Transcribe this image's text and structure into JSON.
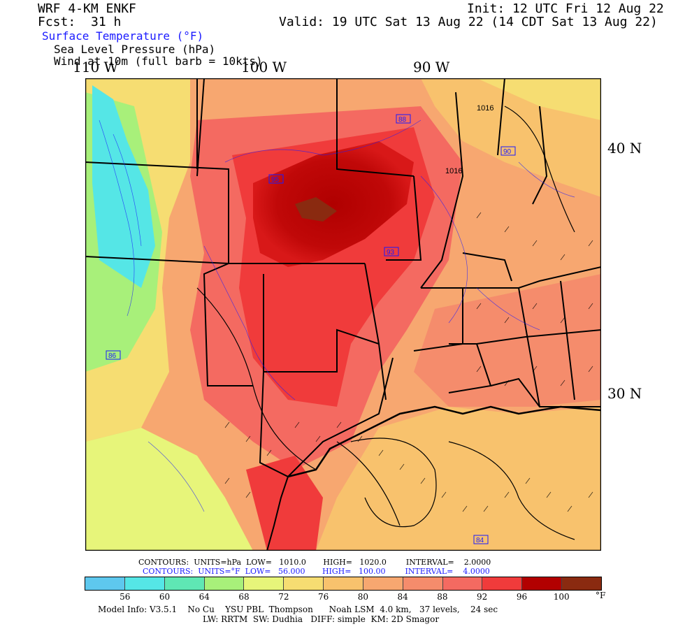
{
  "header": {
    "model": "WRF 4-KM ENKF",
    "fcst_label": "Fcst:",
    "fcst_value": "31 h",
    "init": "Init: 12 UTC Fri 12 Aug 22",
    "valid": "Valid: 19 UTC Sat 13 Aug 22 (14 CDT Sat 13 Aug 22)",
    "field1": "Surface Temperature (°F)",
    "field2": "Sea Level Pressure (hPa)",
    "field3": "Wind at 10m (full barb = 10kts)"
  },
  "axes": {
    "lon_labels": [
      "110 W",
      "100 W",
      "90 W"
    ],
    "lat_labels": [
      "40 N",
      "30 N"
    ]
  },
  "contours": {
    "line1": "CONTOURS:  UNITS=hPa  LOW=   1010.0       HIGH=   1020.0        INTERVAL=    2.0000",
    "line2": "CONTOURS:  UNITS=°F  LOW=   56.000       HIGH=   100.00        INTERVAL=    4.0000"
  },
  "legend": {
    "colors": [
      "#5ec8ee",
      "#55e6e6",
      "#5fe7b4",
      "#a8f07a",
      "#e7f57a",
      "#f6dd72",
      "#f8c26d",
      "#f7a770",
      "#f58c6c",
      "#f46a61",
      "#f03b3b",
      "#b20000",
      "#8a2a10"
    ],
    "ticks": [
      "56",
      "60",
      "64",
      "68",
      "72",
      "76",
      "80",
      "84",
      "88",
      "92",
      "96",
      "100"
    ],
    "unit": "°F"
  },
  "footer": {
    "line1": "Model Info: V3.5.1    No Cu    YSU PBL  Thompson      Noah LSM  4.0 km,   37 levels,    24 sec",
    "line2": "LW: RRTM  SW: Dudhia   DIFF: simple  KM: 2D Smagor"
  },
  "map_labels": {
    "highs": [
      "1016",
      "1016"
    ],
    "boxes": [
      "88",
      "95",
      "90",
      "93",
      "84",
      "86"
    ]
  }
}
